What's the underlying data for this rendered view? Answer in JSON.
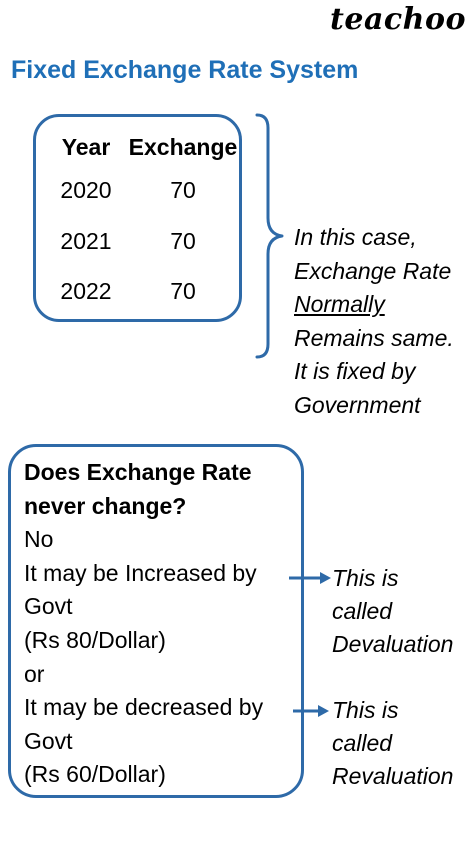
{
  "brand": {
    "logo_text": "teachoo"
  },
  "title": "Fixed Exchange Rate System",
  "rate_table": {
    "headers": [
      "Year",
      "Exchange"
    ],
    "rows": [
      [
        "2020",
        "70"
      ],
      [
        "2021",
        "70"
      ],
      [
        "2022",
        "70"
      ]
    ]
  },
  "fixed_note": {
    "lines": [
      "In this case,",
      "Exchange Rate"
    ],
    "underlined": "Normally",
    "lines_after": [
      "Remains same.",
      "It is fixed by",
      "Government"
    ]
  },
  "question_box": {
    "question_lines": [
      "Does Exchange Rate",
      "never change?"
    ],
    "answer": "No",
    "increase_line": "It may be Increased by",
    "increase_line2": "Govt",
    "increase_example": "(Rs 80/Dollar)",
    "or_text": "or",
    "decrease_line": "It may be decreased by",
    "decrease_line2": "Govt",
    "decrease_example": "(Rs 60/Dollar)"
  },
  "devaluation_note": {
    "lines": [
      "This is",
      "called",
      "Devaluation"
    ]
  },
  "revaluation_note": {
    "lines": [
      "This is",
      "called",
      "Revaluation"
    ]
  },
  "colors": {
    "title": "#1f6fb7",
    "box_border": "#2e6aa8",
    "arrow": "#2e6aa8"
  }
}
